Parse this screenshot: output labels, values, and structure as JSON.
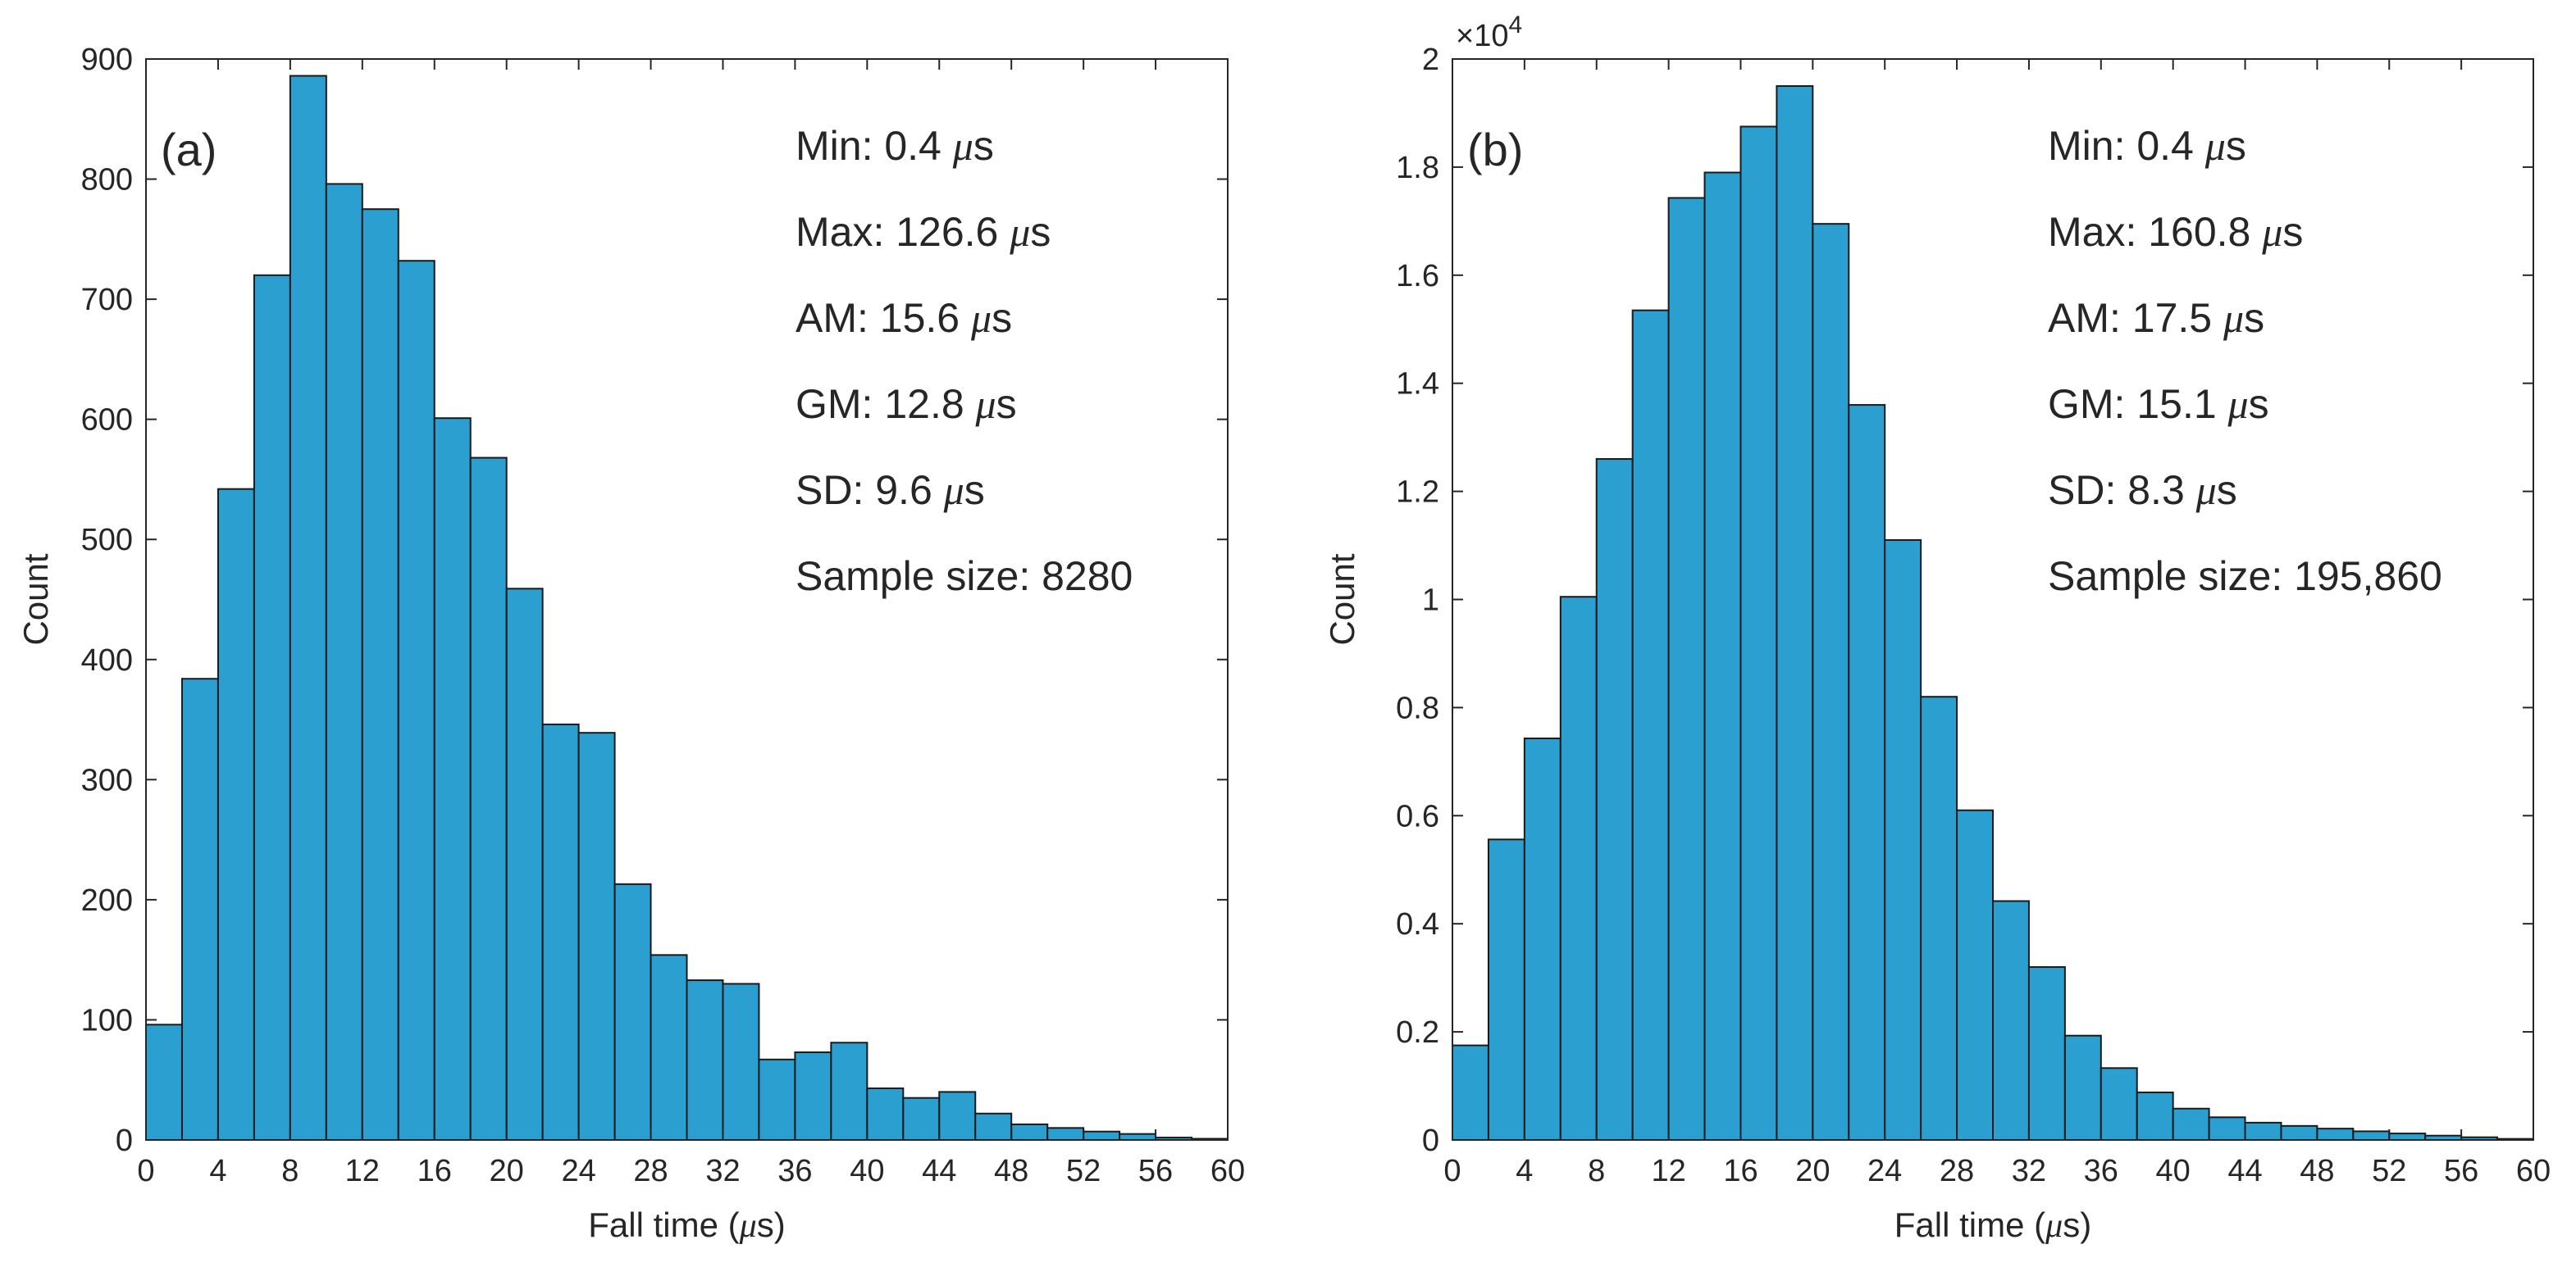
{
  "chart_data": [
    {
      "type": "bar",
      "panel_label": "(a)",
      "xlabel": "Fall time (μs)",
      "ylabel": "Count",
      "xlim": [
        0,
        60
      ],
      "ylim": [
        0,
        900
      ],
      "xticks": [
        0,
        4,
        8,
        12,
        16,
        20,
        24,
        28,
        32,
        36,
        40,
        44,
        48,
        52,
        56,
        60
      ],
      "yticks": [
        0,
        100,
        200,
        300,
        400,
        500,
        600,
        700,
        800,
        900
      ],
      "ytick_labels": [
        "0",
        "100",
        "200",
        "300",
        "400",
        "500",
        "600",
        "700",
        "800",
        "900"
      ],
      "y_exponent_label": "",
      "bin_edges": [
        0,
        2,
        4,
        6,
        8,
        10,
        12,
        14,
        16,
        18,
        20,
        22,
        24,
        26,
        28,
        30,
        32,
        34,
        36,
        38,
        40,
        42,
        44,
        46,
        48,
        50,
        52,
        54,
        56,
        58,
        60
      ],
      "values": [
        96,
        384,
        542,
        720,
        886,
        796,
        775,
        732,
        601,
        568,
        459,
        346,
        339,
        213,
        154,
        133,
        130,
        67,
        73,
        81,
        43,
        35,
        40,
        22,
        13,
        10,
        7,
        5,
        2,
        1
      ],
      "stats": [
        {
          "label": "Min:",
          "value": "0.4",
          "unit": "μs"
        },
        {
          "label": "Max:",
          "value": "126.6",
          "unit": "μs"
        },
        {
          "label": "AM:",
          "value": "15.6",
          "unit": "μs"
        },
        {
          "label": "GM:",
          "value": "12.8",
          "unit": "μs"
        },
        {
          "label": "SD:",
          "value": "9.6",
          "unit": "μs"
        },
        {
          "label": "Sample size:",
          "value": "8280",
          "unit": ""
        }
      ],
      "bar_color": "#2a9fd0"
    },
    {
      "type": "bar",
      "panel_label": "(b)",
      "xlabel": "Fall time (μs)",
      "ylabel": "Count",
      "xlim": [
        0,
        60
      ],
      "ylim": [
        0,
        20000
      ],
      "xticks": [
        0,
        4,
        8,
        12,
        16,
        20,
        24,
        28,
        32,
        36,
        40,
        44,
        48,
        52,
        56,
        60
      ],
      "yticks": [
        0,
        2000,
        4000,
        6000,
        8000,
        10000,
        12000,
        14000,
        16000,
        18000,
        20000
      ],
      "ytick_labels": [
        "0",
        "0.2",
        "0.4",
        "0.6",
        "0.8",
        "1",
        "1.2",
        "1.4",
        "1.6",
        "1.8",
        "2"
      ],
      "y_exponent_label": "×10",
      "y_exponent_power": "4",
      "bin_edges": [
        0,
        2,
        4,
        6,
        8,
        10,
        12,
        14,
        16,
        18,
        20,
        22,
        24,
        26,
        28,
        30,
        32,
        34,
        36,
        38,
        40,
        42,
        44,
        46,
        48,
        50,
        52,
        54,
        56,
        58,
        60
      ],
      "values": [
        1750,
        5560,
        7430,
        10050,
        12600,
        15350,
        17430,
        17900,
        18750,
        19500,
        16950,
        13600,
        11100,
        8200,
        6100,
        4420,
        3200,
        1930,
        1330,
        880,
        580,
        420,
        320,
        260,
        210,
        160,
        120,
        80,
        50,
        20
      ],
      "stats": [
        {
          "label": "Min:",
          "value": "0.4",
          "unit": "μs"
        },
        {
          "label": "Max:",
          "value": "160.8",
          "unit": "μs"
        },
        {
          "label": "AM:",
          "value": "17.5",
          "unit": "μs"
        },
        {
          "label": "GM:",
          "value": "15.1",
          "unit": "μs"
        },
        {
          "label": "SD:",
          "value": "8.3",
          "unit": "μs"
        },
        {
          "label": "Sample size:",
          "value": "195,860",
          "unit": ""
        }
      ],
      "bar_color": "#2a9fd0"
    }
  ]
}
